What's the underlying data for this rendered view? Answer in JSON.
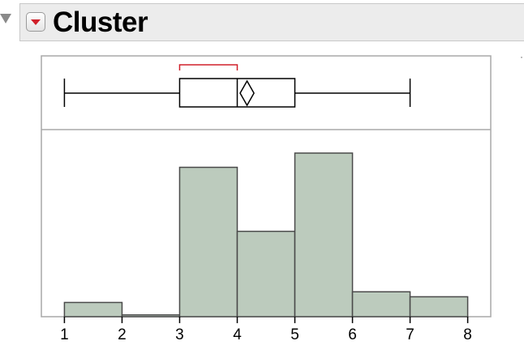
{
  "header": {
    "title": "Cluster",
    "collapse_icon": "disclosure-triangle-down-icon",
    "menu_icon": "red-triangle-menu-icon"
  },
  "side_mark": "·",
  "colors": {
    "bar_fill": "#bccbbd",
    "bar_stroke": "#4a4a4a",
    "shortest_half": "#d0202a",
    "frame": "#a8a8a8",
    "header_bg": "#ececec"
  },
  "chart_data": {
    "type": "bar",
    "subtype": "histogram-with-outlier-box-plot",
    "bins": [
      {
        "start": 1,
        "end": 2,
        "count": 2
      },
      {
        "start": 2,
        "end": 3,
        "count": 0.25
      },
      {
        "start": 3,
        "end": 4,
        "count": 21
      },
      {
        "start": 4,
        "end": 5,
        "count": 12
      },
      {
        "start": 5,
        "end": 6,
        "count": 23
      },
      {
        "start": 6,
        "end": 7,
        "count": 3.5
      },
      {
        "start": 7,
        "end": 8,
        "count": 2.8
      }
    ],
    "box_plot": {
      "min": 1,
      "q1": 3,
      "median": 4,
      "q3": 5,
      "max": 7,
      "mean": 4.17,
      "mean_diamond_half_width": 0.12,
      "shortest_half": [
        3,
        4
      ]
    },
    "xlim": [
      0.6,
      8.4
    ],
    "ylim": [
      0,
      23
    ],
    "x_ticks": [
      "1",
      "2",
      "3",
      "4",
      "5",
      "6",
      "7",
      "8"
    ],
    "title": "Cluster",
    "xlabel": "",
    "ylabel": "",
    "grid": false
  }
}
